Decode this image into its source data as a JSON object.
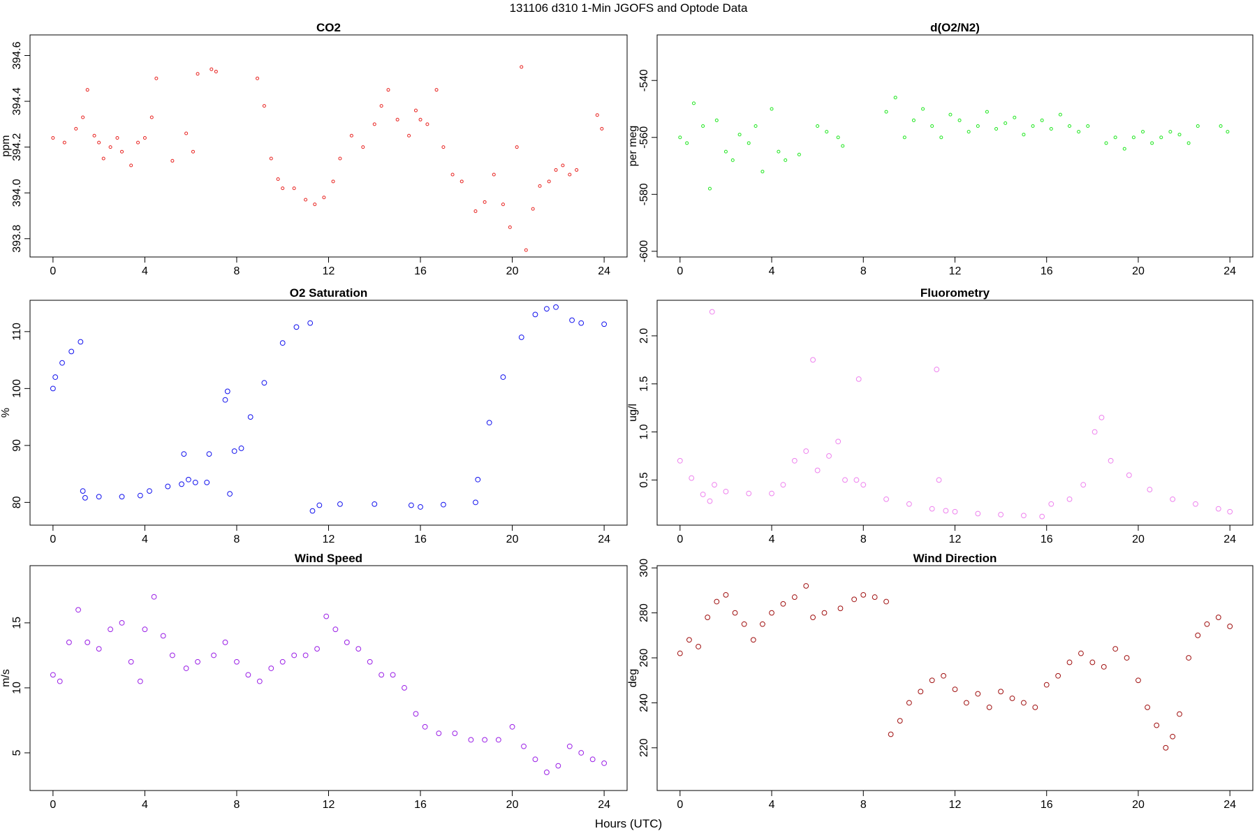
{
  "figure": {
    "title": "131106   d310   1-Min  JGOFS and Optode Data",
    "xlabel": "Hours (UTC)"
  },
  "chart_data": [
    {
      "id": "co2",
      "type": "scatter",
      "title": "CO2",
      "ylabel": "ppm",
      "xlim": [
        -1,
        25
      ],
      "ylim": [
        393.72,
        394.69
      ],
      "xticks": [
        0,
        4,
        8,
        12,
        16,
        20,
        24
      ],
      "yticks": [
        393.8,
        394.0,
        394.2,
        394.4,
        394.6
      ],
      "ytick_labels": [
        "393.8",
        "394.0",
        "394.2",
        "394.4",
        "394.6"
      ],
      "ytick_orientation": "vertical",
      "color": "#e8221f",
      "marker": "small-circle",
      "x": [
        0.0,
        0.5,
        1.0,
        1.3,
        1.5,
        1.8,
        2.0,
        2.2,
        2.5,
        2.8,
        3.0,
        3.4,
        3.7,
        4.0,
        4.3,
        4.5,
        5.2,
        5.8,
        6.1,
        6.3,
        6.9,
        7.1,
        8.9,
        9.2,
        9.5,
        9.8,
        10.0,
        10.5,
        11.0,
        11.4,
        11.8,
        12.2,
        12.5,
        13.0,
        13.5,
        14.0,
        14.3,
        14.6,
        15.0,
        15.5,
        15.8,
        16.0,
        16.3,
        16.7,
        17.0,
        17.4,
        17.8,
        18.4,
        18.8,
        19.2,
        19.6,
        19.9,
        20.2,
        20.4,
        20.6,
        20.9,
        21.2,
        21.6,
        21.9,
        22.2,
        22.5,
        22.8,
        23.7,
        23.9
      ],
      "y": [
        394.24,
        394.22,
        394.28,
        394.33,
        394.45,
        394.25,
        394.22,
        394.15,
        394.2,
        394.24,
        394.18,
        394.12,
        394.22,
        394.24,
        394.33,
        394.5,
        394.14,
        394.26,
        394.18,
        394.52,
        394.54,
        394.53,
        394.5,
        394.38,
        394.15,
        394.06,
        394.02,
        394.02,
        393.97,
        393.95,
        393.98,
        394.05,
        394.15,
        394.25,
        394.2,
        394.3,
        394.38,
        394.45,
        394.32,
        394.25,
        394.36,
        394.32,
        394.3,
        394.45,
        394.2,
        394.08,
        394.05,
        393.92,
        393.96,
        394.08,
        393.95,
        393.85,
        394.2,
        394.55,
        393.75,
        393.93,
        394.03,
        394.05,
        394.1,
        394.12,
        394.08,
        394.1,
        394.34,
        394.28
      ]
    },
    {
      "id": "do2n2",
      "type": "scatter",
      "title": "d(O2/N2)",
      "ylabel": "per meg",
      "xlim": [
        -1,
        25
      ],
      "ylim": [
        -602,
        -524
      ],
      "xticks": [
        0,
        4,
        8,
        12,
        16,
        20,
        24
      ],
      "yticks": [
        -600,
        -580,
        -560,
        -540
      ],
      "ytick_labels": [
        "-600",
        "-580",
        "-560",
        "-540"
      ],
      "ytick_orientation": "vertical",
      "color": "#1ee61e",
      "marker": "small-circle",
      "x": [
        0.0,
        0.3,
        0.6,
        1.0,
        1.3,
        1.6,
        2.0,
        2.3,
        2.6,
        3.0,
        3.3,
        3.6,
        4.0,
        4.3,
        4.6,
        5.2,
        6.0,
        6.4,
        6.9,
        7.1,
        9.0,
        9.4,
        9.8,
        10.2,
        10.6,
        11.0,
        11.4,
        11.8,
        12.2,
        12.6,
        13.0,
        13.4,
        13.8,
        14.2,
        14.6,
        15.0,
        15.4,
        15.8,
        16.2,
        16.6,
        17.0,
        17.4,
        17.8,
        18.6,
        19.0,
        19.4,
        19.8,
        20.2,
        20.6,
        21.0,
        21.4,
        21.8,
        22.2,
        22.6,
        23.6,
        23.9
      ],
      "y": [
        -560,
        -562,
        -548,
        -556,
        -578,
        -554,
        -565,
        -568,
        -559,
        -562,
        -556,
        -572,
        -550,
        -565,
        -568,
        -566,
        -556,
        -558,
        -560,
        -563,
        -551,
        -546,
        -560,
        -554,
        -550,
        -556,
        -560,
        -552,
        -554,
        -558,
        -556,
        -551,
        -557,
        -555,
        -553,
        -559,
        -556,
        -554,
        -557,
        -552,
        -556,
        -558,
        -556,
        -562,
        -560,
        -564,
        -560,
        -558,
        -562,
        -560,
        -558,
        -559,
        -562,
        -556,
        -556,
        -558
      ]
    },
    {
      "id": "o2sat",
      "type": "scatter",
      "title": "O2 Saturation",
      "ylabel": "%",
      "xlim": [
        -1,
        25
      ],
      "ylim": [
        76,
        115.5
      ],
      "xticks": [
        0,
        4,
        8,
        12,
        16,
        20,
        24
      ],
      "yticks": [
        80,
        90,
        100,
        110
      ],
      "ytick_labels": [
        "80",
        "90",
        "100",
        "110"
      ],
      "ytick_orientation": "vertical",
      "color": "#1212ee",
      "marker": "circle",
      "x": [
        0.0,
        0.1,
        0.4,
        0.8,
        1.2,
        1.3,
        1.4,
        2.0,
        3.0,
        3.8,
        4.2,
        5.0,
        5.6,
        5.7,
        5.9,
        6.2,
        6.7,
        6.8,
        7.5,
        7.6,
        7.7,
        7.9,
        8.2,
        8.6,
        9.2,
        10.0,
        10.6,
        11.2,
        11.3,
        11.6,
        12.5,
        14.0,
        15.6,
        16.0,
        17.0,
        18.4,
        18.5,
        19.0,
        19.6,
        20.4,
        21.0,
        21.5,
        21.9,
        22.6,
        23.0,
        24.0
      ],
      "y": [
        100,
        102,
        104.5,
        106.5,
        108.2,
        82,
        80.8,
        81,
        81,
        81.2,
        82,
        82.8,
        83.2,
        88.5,
        84,
        83.5,
        83.5,
        88.5,
        98,
        99.5,
        81.5,
        89,
        89.5,
        95,
        101,
        108,
        110.8,
        111.5,
        78.5,
        79.5,
        79.7,
        79.7,
        79.5,
        79.2,
        79.6,
        80,
        84,
        94,
        102,
        109,
        113,
        114,
        114.3,
        112,
        111.5,
        111.3
      ]
    },
    {
      "id": "fluor",
      "type": "scatter",
      "title": "Fluorometry",
      "ylabel": "ug/l",
      "xlim": [
        -1,
        25
      ],
      "ylim": [
        0.03,
        2.37
      ],
      "xticks": [
        0,
        4,
        8,
        12,
        16,
        20,
        24
      ],
      "yticks": [
        0.5,
        1.0,
        1.5,
        2.0
      ],
      "ytick_labels": [
        "0.5",
        "1.0",
        "1.5",
        "2.0"
      ],
      "ytick_orientation": "vertical",
      "color": "#ee82ee",
      "marker": "circle",
      "x": [
        0.0,
        0.5,
        1.0,
        1.3,
        1.4,
        1.5,
        2.0,
        3.0,
        4.0,
        4.5,
        5.0,
        5.5,
        5.8,
        6.0,
        6.5,
        6.9,
        7.2,
        7.7,
        7.8,
        8.0,
        9.0,
        10.0,
        11.0,
        11.2,
        11.3,
        11.6,
        12.0,
        13.0,
        14.0,
        15.0,
        15.8,
        16.2,
        17.0,
        17.6,
        18.1,
        18.4,
        18.8,
        19.6,
        20.5,
        21.5,
        22.5,
        23.5,
        24.0
      ],
      "y": [
        0.7,
        0.52,
        0.35,
        0.28,
        2.25,
        0.45,
        0.38,
        0.36,
        0.36,
        0.45,
        0.7,
        0.8,
        1.75,
        0.6,
        0.75,
        0.9,
        0.5,
        0.5,
        1.55,
        0.45,
        0.3,
        0.25,
        0.2,
        1.65,
        0.5,
        0.18,
        0.17,
        0.15,
        0.14,
        0.13,
        0.12,
        0.25,
        0.3,
        0.45,
        1.0,
        1.15,
        0.7,
        0.55,
        0.4,
        0.3,
        0.25,
        0.2,
        0.17
      ]
    },
    {
      "id": "wspd",
      "type": "scatter",
      "title": "Wind Speed",
      "ylabel": "m/s",
      "xlim": [
        -1,
        25
      ],
      "ylim": [
        2.1,
        19.4
      ],
      "xticks": [
        0,
        4,
        8,
        12,
        16,
        20,
        24
      ],
      "yticks": [
        5,
        10,
        15
      ],
      "ytick_labels": [
        "5",
        "10",
        "15"
      ],
      "ytick_orientation": "vertical",
      "color": "#9a1ee6",
      "marker": "circle",
      "x": [
        0.0,
        0.3,
        0.7,
        1.1,
        1.5,
        2.0,
        2.5,
        3.0,
        3.4,
        3.8,
        4.0,
        4.4,
        4.8,
        5.2,
        5.8,
        6.3,
        7.0,
        7.5,
        8.0,
        8.5,
        9.0,
        9.5,
        10.0,
        10.5,
        11.0,
        11.5,
        11.9,
        12.3,
        12.8,
        13.3,
        13.8,
        14.3,
        14.8,
        15.3,
        15.8,
        16.2,
        16.8,
        17.5,
        18.2,
        18.8,
        19.4,
        20.0,
        20.5,
        21.0,
        21.5,
        22.0,
        22.5,
        23.0,
        23.5,
        24.0
      ],
      "y": [
        11,
        10.5,
        13.5,
        16,
        13.5,
        13,
        14.5,
        15,
        12,
        10.5,
        14.5,
        17,
        14,
        12.5,
        11.5,
        12,
        12.5,
        13.5,
        12,
        11,
        10.5,
        11.5,
        12,
        12.5,
        12.5,
        13,
        15.5,
        14.5,
        13.5,
        13,
        12,
        11,
        11,
        10,
        8,
        7,
        6.5,
        6.5,
        6,
        6,
        6,
        7,
        5.5,
        4.5,
        3.5,
        4,
        5.5,
        5,
        4.5,
        4.2
      ]
    },
    {
      "id": "wdir",
      "type": "scatter",
      "title": "Wind Direction",
      "ylabel": "deg",
      "xlim": [
        -1,
        25
      ],
      "ylim": [
        201,
        301
      ],
      "xticks": [
        0,
        4,
        8,
        12,
        16,
        20,
        24
      ],
      "yticks": [
        220,
        240,
        260,
        280,
        300
      ],
      "ytick_labels": [
        "220",
        "240",
        "260",
        "280",
        "300"
      ],
      "ytick_orientation": "vertical",
      "color": "#a01010",
      "marker": "circle",
      "x": [
        0.0,
        0.4,
        0.8,
        1.2,
        1.6,
        2.0,
        2.4,
        2.8,
        3.2,
        3.6,
        4.0,
        4.5,
        5.0,
        5.5,
        5.8,
        6.3,
        7.0,
        7.6,
        8.0,
        8.5,
        9.0,
        9.2,
        9.6,
        10.0,
        10.5,
        11.0,
        11.5,
        12.0,
        12.5,
        13.0,
        13.5,
        14.0,
        14.5,
        15.0,
        15.5,
        16.0,
        16.5,
        17.0,
        17.5,
        18.0,
        18.5,
        19.0,
        19.5,
        20.0,
        20.4,
        20.8,
        21.2,
        21.5,
        21.8,
        22.2,
        22.6,
        23.0,
        23.5,
        24.0
      ],
      "y": [
        262,
        268,
        265,
        278,
        285,
        288,
        280,
        275,
        268,
        275,
        280,
        284,
        287,
        292,
        278,
        280,
        282,
        286,
        288,
        287,
        285,
        226,
        232,
        240,
        245,
        250,
        252,
        246,
        240,
        244,
        238,
        245,
        242,
        240,
        238,
        248,
        252,
        258,
        262,
        258,
        256,
        264,
        260,
        250,
        238,
        230,
        220,
        225,
        235,
        260,
        270,
        275,
        278,
        274
      ]
    }
  ]
}
